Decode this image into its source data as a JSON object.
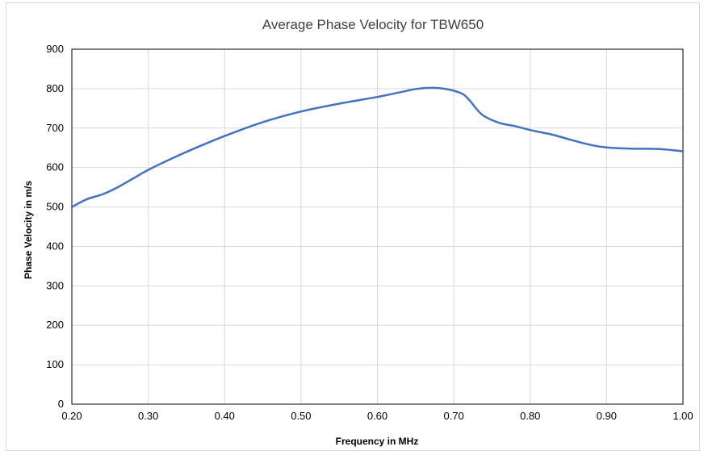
{
  "chart_data": {
    "type": "line",
    "title": "Average Phase Velocity for TBW650",
    "xlabel": "Frequency in MHz",
    "ylabel": "Phase Velocity in m/s",
    "xlim": [
      0.2,
      1.0
    ],
    "ylim": [
      0,
      900
    ],
    "xticks": [
      "0.20",
      "0.30",
      "0.40",
      "0.50",
      "0.60",
      "0.70",
      "0.80",
      "0.90",
      "1.00"
    ],
    "yticks": [
      "0",
      "100",
      "200",
      "300",
      "400",
      "500",
      "600",
      "700",
      "800",
      "900"
    ],
    "grid": true,
    "legend": "none",
    "series": [
      {
        "color": "#4472c4",
        "x": [
          0.2,
          0.22,
          0.24,
          0.26,
          0.28,
          0.3,
          0.33,
          0.36,
          0.4,
          0.45,
          0.5,
          0.55,
          0.6,
          0.63,
          0.65,
          0.67,
          0.69,
          0.71,
          0.72,
          0.73,
          0.74,
          0.76,
          0.78,
          0.8,
          0.83,
          0.85,
          0.88,
          0.9,
          0.93,
          0.97,
          1.0
        ],
        "values": [
          500,
          520,
          532,
          550,
          572,
          594,
          622,
          648,
          680,
          715,
          742,
          762,
          779,
          791,
          799,
          802,
          799,
          788,
          772,
          748,
          730,
          713,
          705,
          695,
          683,
          672,
          657,
          651,
          648,
          647,
          641
        ]
      }
    ]
  }
}
